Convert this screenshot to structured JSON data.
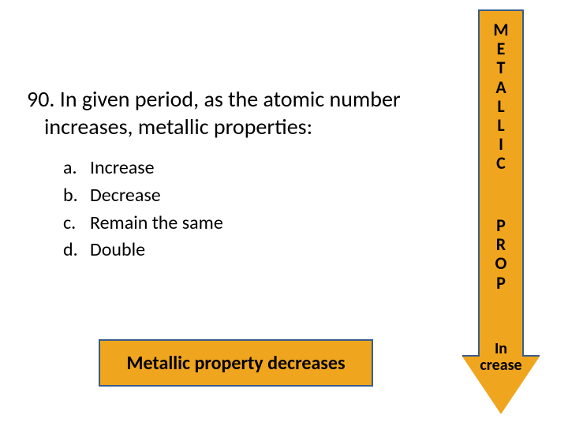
{
  "colors": {
    "orange": "#f0a51f",
    "border": "#385d8a",
    "text": "#000000",
    "bg": "#ffffff"
  },
  "question": {
    "number": "90.",
    "line1": "90. In given period, as the atomic number",
    "line2": "increases, metallic properties:"
  },
  "options": [
    {
      "label": "a.",
      "text": "Increase"
    },
    {
      "label": "b.",
      "text": "Decrease"
    },
    {
      "label": "c.",
      "text": "Remain the same"
    },
    {
      "label": "d.",
      "text": "Double"
    }
  ],
  "answer": {
    "text": "Metallic property decreases"
  },
  "arrow": {
    "word1": "METALLIC",
    "word2": "PROP",
    "bottom_line1": "In",
    "bottom_line2": "crease"
  },
  "styling": {
    "question_fontsize": 28,
    "option_fontsize": 24,
    "answer_fontsize": 24,
    "arrow_fontsize": 22
  }
}
